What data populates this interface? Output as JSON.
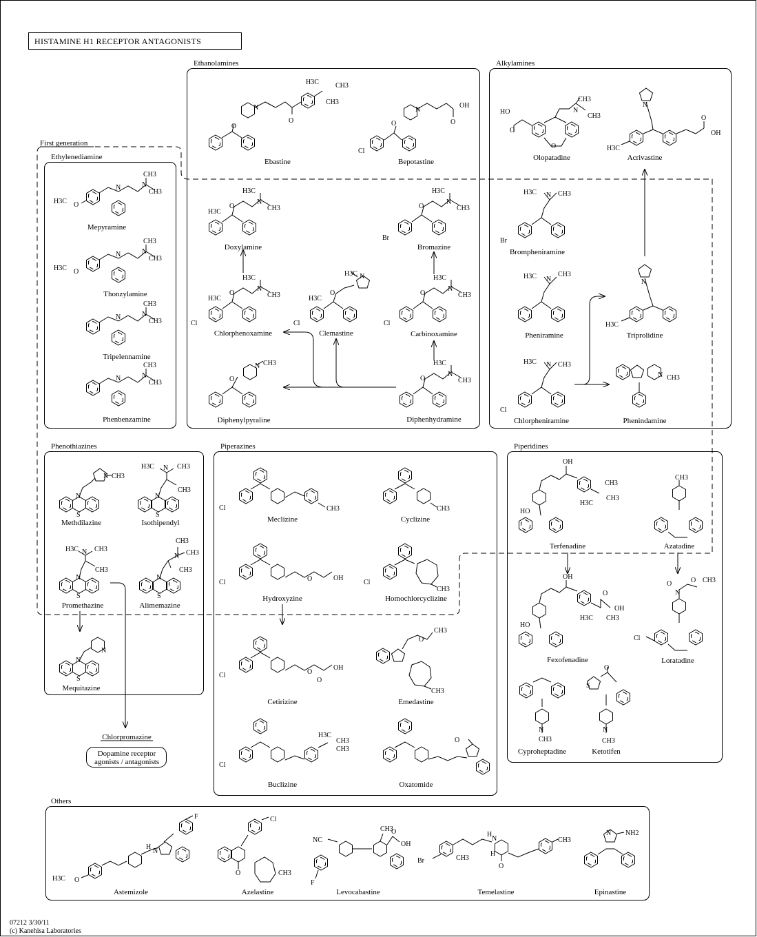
{
  "title": "HISTAMINE H1 RECEPTOR ANTAGONISTS",
  "footer": {
    "code": "07212 3/30/11",
    "copyright": "(c) Kanehisa Laboratories"
  },
  "groups": {
    "first_generation": "First generation",
    "ethylenediamine": "Ethylenediamine",
    "ethanolamines": "Ethanolamines",
    "alkylamines": "Alkylamines",
    "phenothiazines": "Phenothiazines",
    "piperazines": "Piperazines",
    "piperidines": "Piperidines",
    "others": "Others"
  },
  "drugs": {
    "mepyramine": "Mepyramine",
    "thonzylamine": "Thonzylamine",
    "tripelennamine": "Tripelennamine",
    "phenbenzamine": "Phenbenzamine",
    "ebastine": "Ebastine",
    "bepotastine": "Bepotastine",
    "doxylamine": "Doxylamine",
    "bromazine": "Bromazine",
    "chlorphenoxamine": "Chlorphenoxamine",
    "clemastine": "Clemastine",
    "carbinoxamine": "Carbinoxamine",
    "diphenylpyraline": "Diphenylpyraline",
    "diphenhydramine": "Diphenhydramine",
    "olopatadine": "Olopatadine",
    "acrivastine": "Acrivastine",
    "brompheniramine": "Brompheniramine",
    "pheniramine": "Pheniramine",
    "triprolidine": "Triprolidine",
    "chlorpheniramine": "Chlorpheniramine",
    "phenindamine": "Phenindamine",
    "methdilazine": "Methdilazine",
    "isothipendyl": "Isothipendyl",
    "promethazine": "Promethazine",
    "alimemazine": "Alimemazine",
    "mequitazine": "Mequitazine",
    "chlorpromazine": "Chlorpromazine",
    "meclizine": "Meclizine",
    "cyclizine": "Cyclizine",
    "hydroxyzine": "Hydroxyzine",
    "homochlorcyclizine": "Homochlorcyclizine",
    "cetirizine": "Cetirizine",
    "emedastine": "Emedastine",
    "buclizine": "Buclizine",
    "oxatomide": "Oxatomide",
    "terfenadine": "Terfenadine",
    "azatadine": "Azatadine",
    "fexofenadine": "Fexofenadine",
    "loratadine": "Loratadine",
    "cyproheptadine": "Cyproheptadine",
    "ketotifen": "Ketotifen",
    "astemizole": "Astemizole",
    "azelastine": "Azelastine",
    "levocabastine": "Levocabastine",
    "temelastine": "Temelastine",
    "epinastine": "Epinastine"
  },
  "dopamine_box": {
    "line1": "Dopamine receptor",
    "line2": "agonists / antagonists"
  },
  "atoms": {
    "h3c": "H3C",
    "ch3": "CH3",
    "n": "N",
    "o": "O",
    "oh": "OH",
    "cl": "Cl",
    "br": "Br",
    "f": "F",
    "s": "S",
    "nh2": "NH2",
    "h": "H",
    "nc": "NC",
    "ho": "HO"
  }
}
